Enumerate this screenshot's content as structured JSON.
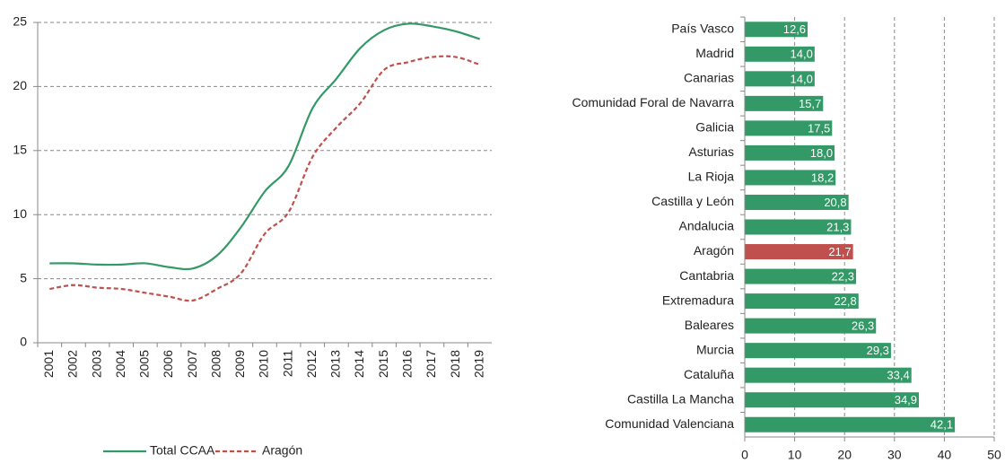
{
  "chart_data": [
    {
      "type": "line",
      "categories": [
        "2001",
        "2002",
        "2003",
        "2004",
        "2005",
        "2006",
        "2007",
        "2008",
        "2009",
        "2010",
        "2011",
        "2012",
        "2013",
        "2014",
        "2015",
        "2016",
        "2017",
        "2018",
        "2019"
      ],
      "series": [
        {
          "name": "Total CCAA",
          "color": "#339966",
          "dash": false,
          "values": [
            6.2,
            6.2,
            6.1,
            6.1,
            6.2,
            5.9,
            5.8,
            6.8,
            9.0,
            11.8,
            13.8,
            18.3,
            20.6,
            23.0,
            24.4,
            24.9,
            24.7,
            24.3,
            23.7
          ]
        },
        {
          "name": "Aragón",
          "color": "#c0504d",
          "dash": true,
          "values": [
            4.2,
            4.5,
            4.3,
            4.2,
            3.9,
            3.6,
            3.3,
            4.2,
            5.4,
            8.5,
            10.2,
            14.5,
            16.8,
            18.7,
            21.3,
            21.9,
            22.3,
            22.3,
            21.7
          ]
        }
      ],
      "ylim": [
        0,
        25
      ],
      "yticks": [
        0,
        5,
        10,
        15,
        20,
        25
      ],
      "grid": true,
      "legend": "bottom"
    },
    {
      "type": "hbar",
      "categories": [
        "País Vasco",
        "Madrid",
        "Canarias",
        "Comunidad Foral de Navarra",
        "Galicia",
        "Asturias",
        "La Rioja",
        "Castilla y León",
        "Andalucia",
        "Aragón",
        "Cantabria",
        "Extremadura",
        "Baleares",
        "Murcia",
        "Cataluña",
        "Castilla La Mancha",
        "Comunidad Valenciana"
      ],
      "values": [
        12.6,
        14.0,
        14.0,
        15.7,
        17.5,
        18.0,
        18.2,
        20.8,
        21.3,
        21.7,
        22.3,
        22.8,
        26.3,
        29.3,
        33.4,
        34.9,
        42.1
      ],
      "value_labels": [
        "12,6",
        "14,0",
        "14,0",
        "15,7",
        "17,5",
        "18,0",
        "18,2",
        "20,8",
        "21,3",
        "21,7",
        "22,3",
        "22,8",
        "26,3",
        "29,3",
        "33,4",
        "34,9",
        "42,1"
      ],
      "colors": [
        "#339966",
        "#339966",
        "#339966",
        "#339966",
        "#339966",
        "#339966",
        "#339966",
        "#339966",
        "#339966",
        "#c0504d",
        "#339966",
        "#339966",
        "#339966",
        "#339966",
        "#339966",
        "#339966",
        "#339966"
      ],
      "xlim": [
        0,
        50
      ],
      "xticks": [
        0,
        10,
        20,
        30,
        40,
        50
      ],
      "grid": true
    }
  ]
}
